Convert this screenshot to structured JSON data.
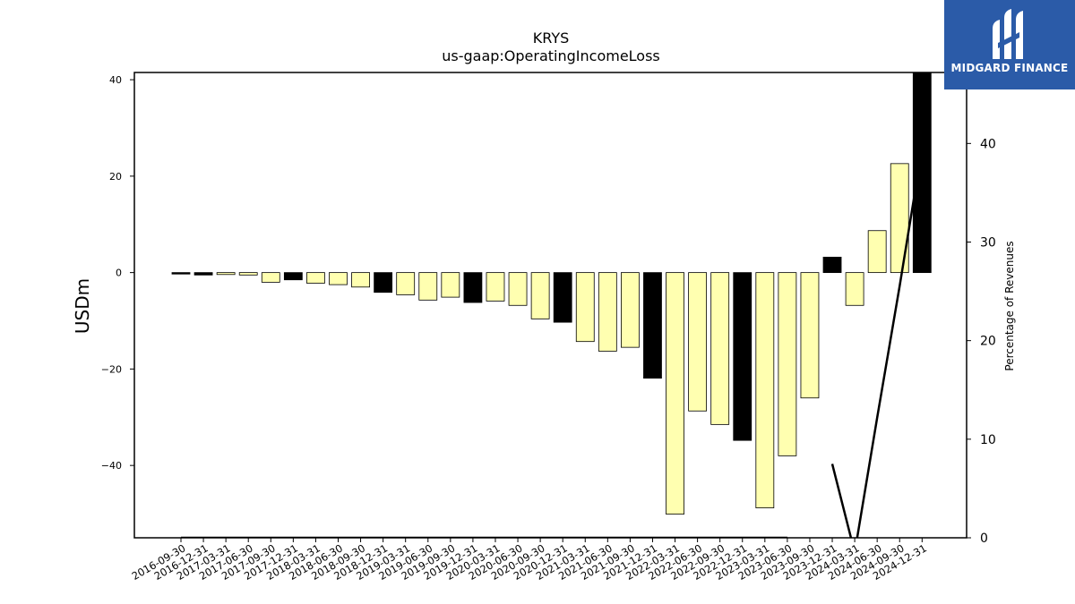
{
  "brand": {
    "name": "MIDGARD FINANCE",
    "color": "#2b5ba8"
  },
  "chart_data": {
    "type": "bar",
    "title": "KRYS",
    "subtitle": "us-gaap:OperatingIncomeLoss",
    "ylabel": "USDm",
    "y2label": "Percentage of Revenues",
    "ylim": [
      -55,
      41.5
    ],
    "y2lim": [
      0,
      47.2
    ],
    "yticks": [
      40,
      20,
      0,
      -20,
      -40
    ],
    "y2ticks": [
      0,
      10,
      20,
      30,
      40
    ],
    "ytick_labels": [
      "40",
      "20",
      "0",
      "−20",
      "−40"
    ],
    "y2tick_labels": [
      "0",
      "10",
      "20",
      "30",
      "40"
    ],
    "categories": [
      "2016-09-30",
      "2016-12-31",
      "2017-03-31",
      "2017-06-30",
      "2017-09-30",
      "2017-12-31",
      "2018-03-31",
      "2018-06-30",
      "2018-09-30",
      "2018-12-31",
      "2019-03-31",
      "2019-06-30",
      "2019-09-30",
      "2019-12-31",
      "2020-03-31",
      "2020-06-30",
      "2020-09-30",
      "2020-12-31",
      "2021-03-31",
      "2021-06-30",
      "2021-09-30",
      "2021-12-31",
      "2022-03-31",
      "2022-06-30",
      "2022-09-30",
      "2022-12-31",
      "2023-03-31",
      "2023-06-30",
      "2023-09-30",
      "2023-12-31",
      "2024-03-31",
      "2024-06-30",
      "2024-09-30",
      "2024-12-31"
    ],
    "series": [
      {
        "values": [
          -0.3,
          -0.5,
          -0.4,
          -0.5,
          -2.0,
          -1.5,
          -2.2,
          -2.5,
          -3.0,
          -4.1,
          -4.6,
          -5.7,
          -5.1,
          -6.2,
          -5.9,
          -6.8,
          -9.6,
          -10.3,
          -14.3,
          -16.3,
          -15.5,
          -21.9,
          -50.1,
          -28.7,
          -31.5,
          -34.8,
          -48.8,
          -38.0,
          -26.0,
          3.2,
          -6.8,
          8.7,
          22.6,
          41.5
        ],
        "colors": [
          "#000000",
          "#000000",
          "#ffffb0",
          "#ffffb0",
          "#ffffb0",
          "#000000",
          "#ffffb0",
          "#ffffb0",
          "#ffffb0",
          "#000000",
          "#ffffb0",
          "#ffffb0",
          "#ffffb0",
          "#000000",
          "#ffffb0",
          "#ffffb0",
          "#ffffb0",
          "#000000",
          "#ffffb0",
          "#ffffb0",
          "#ffffb0",
          "#000000",
          "#ffffb0",
          "#ffffb0",
          "#ffffb0",
          "#000000",
          "#ffffb0",
          "#ffffb0",
          "#ffffb0",
          "#000000",
          "#ffffb0",
          "#ffffb0",
          "#ffffb0",
          "#000000"
        ]
      },
      {
        "type": "line",
        "axis": "right",
        "values": [
          0,
          0,
          0,
          0,
          0,
          0,
          0,
          0,
          0,
          0,
          0,
          0,
          0,
          0,
          0,
          0,
          0,
          0,
          0,
          0,
          0,
          0,
          0,
          0,
          0,
          0,
          0,
          0,
          null,
          7.5,
          -1.5,
          12.2,
          25.5,
          39.5
        ]
      }
    ],
    "grid": false
  }
}
